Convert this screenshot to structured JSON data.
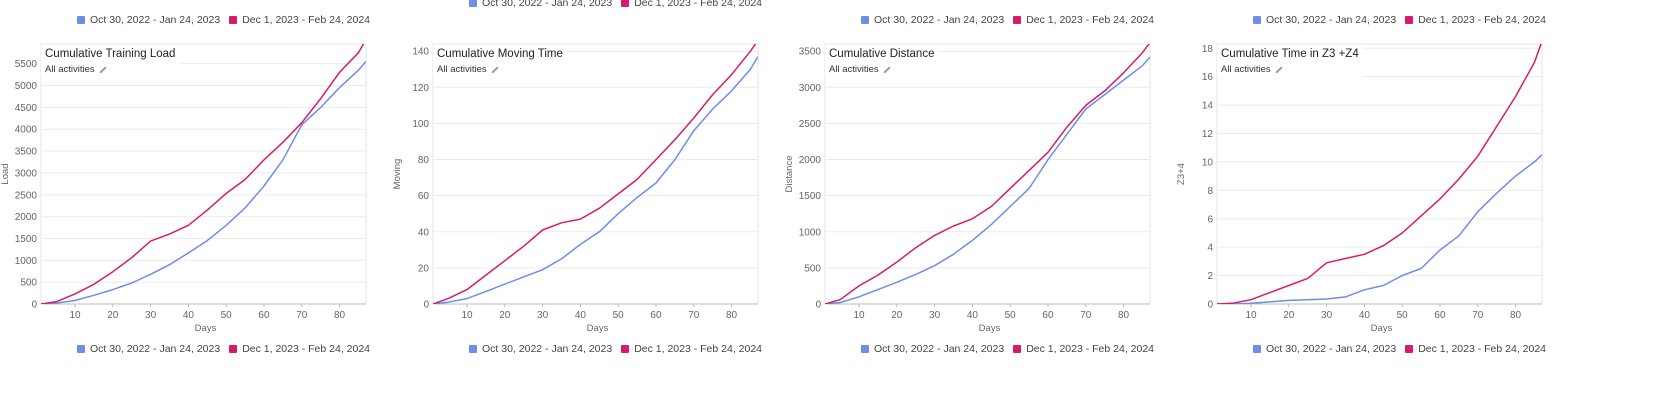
{
  "legend": {
    "series_a": "Oct 30, 2022 - Jan 24, 2023",
    "series_b": "Dec 1, 2023 - Feb 24, 2024",
    "color_a": "#6d8ee8",
    "color_b": "#d81b6b"
  },
  "chart_data": [
    {
      "type": "line",
      "title": "Cumulative Training Load",
      "subtitle": "All activities",
      "xlabel": "Days",
      "ylabel": "Load",
      "xlim": [
        1,
        87
      ],
      "ylim": [
        0,
        5950
      ],
      "x_ticks": [
        10,
        20,
        30,
        40,
        50,
        60,
        70,
        80
      ],
      "y_ticks": [
        0,
        500,
        1000,
        1500,
        2000,
        2500,
        3000,
        3500,
        4000,
        4500,
        5000,
        5500
      ],
      "x": [
        1,
        5,
        10,
        15,
        20,
        25,
        30,
        35,
        40,
        45,
        50,
        55,
        60,
        65,
        70,
        75,
        80,
        85,
        87
      ],
      "series": [
        {
          "name": "Oct 30, 2022 - Jan 24, 2023",
          "values": [
            0,
            20,
            80,
            200,
            330,
            480,
            680,
            900,
            1170,
            1450,
            1800,
            2200,
            2700,
            3300,
            4100,
            4500,
            4950,
            5350,
            5550
          ]
        },
        {
          "name": "Dec 1, 2023 - Feb 24, 2024",
          "values": [
            0,
            50,
            230,
            450,
            740,
            1060,
            1440,
            1600,
            1800,
            2150,
            2530,
            2850,
            3300,
            3700,
            4150,
            4700,
            5300,
            5750,
            6050
          ]
        }
      ]
    },
    {
      "type": "line",
      "title": "Cumulative Moving Time",
      "subtitle": "All activities",
      "xlabel": "Days",
      "ylabel": "Moving",
      "xlim": [
        1,
        87
      ],
      "ylim": [
        0,
        144
      ],
      "x_ticks": [
        10,
        20,
        30,
        40,
        50,
        60,
        70,
        80
      ],
      "y_ticks": [
        0,
        20,
        40,
        60,
        80,
        100,
        120,
        140
      ],
      "x": [
        1,
        5,
        10,
        15,
        20,
        25,
        30,
        35,
        40,
        45,
        50,
        55,
        60,
        65,
        70,
        75,
        80,
        85,
        87
      ],
      "series": [
        {
          "name": "Oct 30, 2022 - Jan 24, 2023",
          "values": [
            0,
            1,
            3,
            7,
            11,
            15,
            19,
            25,
            33,
            40,
            50,
            59,
            67,
            80,
            96,
            108,
            118,
            130,
            137
          ]
        },
        {
          "name": "Dec 1, 2023 - Feb 24, 2024",
          "values": [
            0,
            3,
            8,
            16,
            24,
            32,
            41,
            45,
            47,
            53,
            61,
            69,
            80,
            91,
            103,
            116,
            127,
            140,
            146
          ]
        }
      ]
    },
    {
      "type": "line",
      "title": "Cumulative Distance",
      "subtitle": "All activities",
      "xlabel": "Days",
      "ylabel": "Distance",
      "xlim": [
        1,
        87
      ],
      "ylim": [
        0,
        3600
      ],
      "x_ticks": [
        10,
        20,
        30,
        40,
        50,
        60,
        70,
        80
      ],
      "y_ticks": [
        0,
        500,
        1000,
        1500,
        2000,
        2500,
        3000,
        3500
      ],
      "x": [
        1,
        5,
        10,
        15,
        20,
        25,
        30,
        35,
        40,
        45,
        50,
        55,
        60,
        65,
        70,
        75,
        80,
        85,
        87
      ],
      "series": [
        {
          "name": "Oct 30, 2022 - Jan 24, 2023",
          "values": [
            0,
            20,
            100,
            200,
            300,
            410,
            530,
            690,
            880,
            1100,
            1350,
            1600,
            2000,
            2350,
            2700,
            2900,
            3100,
            3300,
            3420
          ]
        },
        {
          "name": "Dec 1, 2023 - Feb 24, 2024",
          "values": [
            0,
            60,
            250,
            400,
            580,
            780,
            950,
            1080,
            1180,
            1350,
            1600,
            1850,
            2100,
            2450,
            2750,
            2950,
            3200,
            3480,
            3620
          ]
        }
      ]
    },
    {
      "type": "line",
      "title": "Cumulative Time in Z3 +Z4",
      "subtitle": "All activities",
      "xlabel": "Days",
      "ylabel": "Z3+4",
      "xlim": [
        1,
        87
      ],
      "ylim": [
        0,
        18.3
      ],
      "x_ticks": [
        10,
        20,
        30,
        40,
        50,
        60,
        70,
        80
      ],
      "y_ticks": [
        0,
        2,
        4,
        6,
        8,
        10,
        12,
        14,
        16,
        18
      ],
      "x": [
        1,
        5,
        10,
        15,
        20,
        25,
        30,
        35,
        40,
        45,
        50,
        55,
        60,
        65,
        70,
        75,
        80,
        85,
        87
      ],
      "series": [
        {
          "name": "Oct 30, 2022 - Jan 24, 2023",
          "values": [
            0,
            0,
            0.05,
            0.15,
            0.25,
            0.3,
            0.35,
            0.5,
            1.0,
            1.3,
            2.0,
            2.5,
            3.8,
            4.8,
            6.5,
            7.8,
            9.0,
            10.0,
            10.5
          ]
        },
        {
          "name": "Dec 1, 2023 - Feb 24, 2024",
          "values": [
            0,
            0.05,
            0.3,
            0.8,
            1.3,
            1.8,
            2.9,
            3.2,
            3.5,
            4.1,
            5.0,
            6.2,
            7.4,
            8.8,
            10.4,
            12.5,
            14.6,
            17.0,
            18.5
          ]
        }
      ]
    }
  ]
}
